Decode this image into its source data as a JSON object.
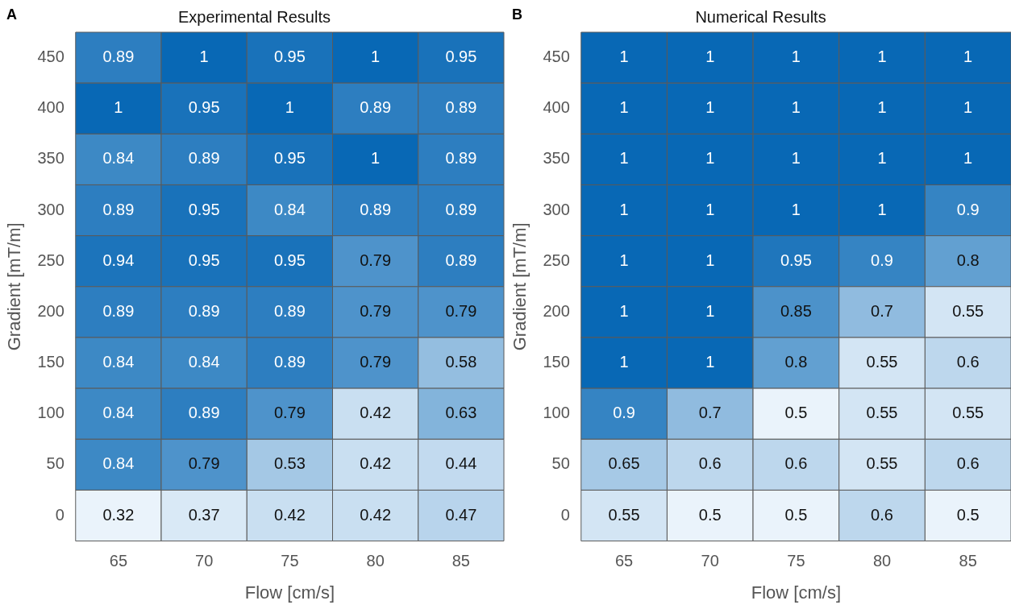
{
  "chart_data": [
    {
      "type": "heatmap",
      "title": "Experimental Results",
      "xlabel": "Flow [cm/s]",
      "ylabel": "Gradient [mT/m]",
      "annotations": [
        "A"
      ],
      "data_labels": true,
      "categories": [
        "65",
        "70",
        "75",
        "80",
        "85"
      ],
      "y_categories": [
        "450",
        "400",
        "350",
        "300",
        "250",
        "200",
        "150",
        "100",
        "50",
        "0"
      ],
      "cells": [
        [
          0.89,
          1,
          0.95,
          1,
          0.95
        ],
        [
          1,
          0.95,
          1,
          0.89,
          0.89
        ],
        [
          0.84,
          0.89,
          0.95,
          1,
          0.89
        ],
        [
          0.89,
          0.95,
          0.84,
          0.89,
          0.89
        ],
        [
          0.94,
          0.95,
          0.95,
          0.79,
          0.89
        ],
        [
          0.89,
          0.89,
          0.89,
          0.79,
          0.79
        ],
        [
          0.84,
          0.84,
          0.89,
          0.79,
          0.58
        ],
        [
          0.84,
          0.89,
          0.79,
          0.42,
          0.63
        ],
        [
          0.84,
          0.79,
          0.53,
          0.42,
          0.44
        ],
        [
          0.32,
          0.37,
          0.42,
          0.42,
          0.47
        ]
      ]
    },
    {
      "type": "heatmap",
      "title": "Numerical Results",
      "xlabel": "Flow [cm/s]",
      "ylabel": "Gradient [mT/m]",
      "annotations": [
        "B"
      ],
      "data_labels": true,
      "categories": [
        "65",
        "70",
        "75",
        "80",
        "85"
      ],
      "y_categories": [
        "450",
        "400",
        "350",
        "300",
        "250",
        "200",
        "150",
        "100",
        "50",
        "0"
      ],
      "cells": [
        [
          1,
          1,
          1,
          1,
          1
        ],
        [
          1,
          1,
          1,
          1,
          1
        ],
        [
          1,
          1,
          1,
          1,
          1
        ],
        [
          1,
          1,
          1,
          1,
          0.9
        ],
        [
          1,
          1,
          0.95,
          0.9,
          0.8
        ],
        [
          1,
          1,
          0.85,
          0.7,
          0.55
        ],
        [
          1,
          1,
          0.8,
          0.55,
          0.6
        ],
        [
          0.9,
          0.7,
          0.5,
          0.55,
          0.55
        ],
        [
          0.65,
          0.6,
          0.6,
          0.55,
          0.6
        ],
        [
          0.55,
          0.5,
          0.5,
          0.6,
          0.5
        ]
      ]
    }
  ]
}
